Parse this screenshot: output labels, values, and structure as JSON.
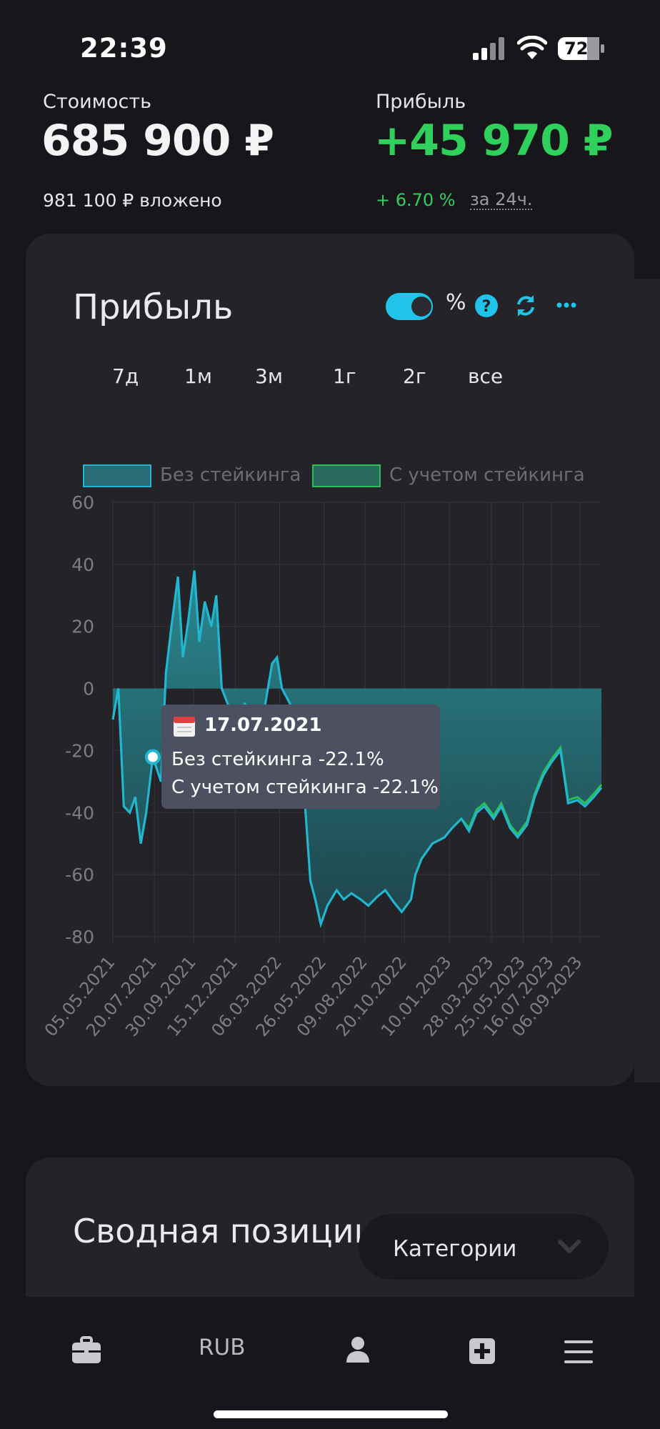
{
  "status_bar": {
    "time": "22:39",
    "battery": "72"
  },
  "header": {
    "value_label": "Стоимость",
    "value_amount": "685 900 ₽",
    "invested": "981 100 ₽ вложено",
    "profit_label": "Прибыль",
    "profit_amount": "+45 970 ₽",
    "profit_pct": "+ 6.70 %",
    "period_link": "за 24ч."
  },
  "colors": {
    "accent": "#20c3ea",
    "positive": "#2fd15c",
    "series_no_staking": "#21b6d6",
    "series_with_staking": "#2bbd56"
  },
  "chart_card": {
    "title": "Прибыль",
    "percent_label": "%",
    "toggle_on": true,
    "icons": [
      "help-icon",
      "refresh-icon",
      "more-icon"
    ],
    "ranges": [
      "7д",
      "1м",
      "3м",
      "1г",
      "2г",
      "все"
    ]
  },
  "tooltip": {
    "date": "17.07.2021",
    "line1": "Без стейкинга -22.1%",
    "line2": "С учетом стейкинга -22.1%"
  },
  "chart_data": {
    "type": "area",
    "legend_position": "top",
    "grid": true,
    "ylim": [
      -80,
      60
    ],
    "yticks": [
      60,
      40,
      20,
      0,
      -20,
      -40,
      -60,
      -80
    ],
    "xticks": [
      "05.05.2021",
      "20.07.2021",
      "30.09.2021",
      "15.12.2021",
      "06.03.2022",
      "26.05.2022",
      "09.08.2022",
      "20.10.2022",
      "10.01.2023",
      "28.03.2023",
      "25.05.2023",
      "16.07.2023",
      "06.09.2023"
    ],
    "x": [
      "05.05.2021",
      "15.05.2021",
      "25.05.2021",
      "05.06.2021",
      "15.06.2021",
      "25.06.2021",
      "05.07.2021",
      "17.07.2021",
      "01.08.2021",
      "10.08.2021",
      "20.08.2021",
      "01.09.2021",
      "10.09.2021",
      "20.09.2021",
      "01.10.2021",
      "10.10.2021",
      "20.10.2021",
      "01.11.2021",
      "10.11.2021",
      "20.11.2021",
      "01.12.2021",
      "20.12.2021",
      "01.01.2022",
      "20.01.2022",
      "01.02.2022",
      "20.02.2022",
      "01.03.2022",
      "10.03.2022",
      "25.03.2022",
      "01.04.2022",
      "15.04.2022",
      "01.05.2022",
      "10.05.2022",
      "20.05.2022",
      "01.06.2022",
      "18.06.2022",
      "01.07.2022",
      "15.07.2022",
      "01.08.2022",
      "15.08.2022",
      "01.09.2022",
      "15.09.2022",
      "01.10.2022",
      "15.10.2022",
      "01.11.2022",
      "09.11.2022",
      "20.11.2022",
      "10.12.2022",
      "01.01.2023",
      "15.01.2023",
      "01.02.2023",
      "15.02.2023",
      "01.03.2023",
      "15.03.2023",
      "01.04.2023",
      "15.04.2023",
      "01.05.2023",
      "15.05.2023",
      "01.06.2023",
      "15.06.2023",
      "01.07.2023",
      "15.07.2023",
      "01.08.2023",
      "15.08.2023",
      "01.09.2023",
      "15.09.2023",
      "01.10.2023",
      "15.10.2023"
    ],
    "series": [
      {
        "name": "Без стейкинга",
        "values": [
          -10,
          0,
          -38,
          -40,
          -35,
          -50,
          -40,
          -22.1,
          -30,
          5,
          20,
          36,
          10,
          22,
          38,
          15,
          28,
          20,
          30,
          0,
          -5,
          -10,
          -5,
          -8,
          -12,
          8,
          10,
          0,
          -5,
          -10,
          -22,
          -62,
          -68,
          -76,
          -70,
          -65,
          -68,
          -66,
          -68,
          -70,
          -67,
          -65,
          -69,
          -72,
          -68,
          -60,
          -55,
          -50,
          -48,
          -45,
          -42,
          -46,
          -40,
          -38,
          -42,
          -38,
          -45,
          -48,
          -44,
          -35,
          -28,
          -24,
          -20,
          -37,
          -36,
          -38,
          -35,
          -32
        ]
      },
      {
        "name": "С учетом стейкинга",
        "values": [
          -10,
          0,
          -38,
          -40,
          -35,
          -50,
          -40,
          -22.1,
          -30,
          5,
          20,
          36,
          10,
          22,
          38,
          15,
          28,
          20,
          30,
          0,
          -5,
          -10,
          -5,
          -8,
          -12,
          8,
          10,
          0,
          -5,
          -10,
          -22,
          -62,
          -68,
          -76,
          -70,
          -65,
          -68,
          -66,
          -68,
          -70,
          -67,
          -65,
          -69,
          -72,
          -68,
          -60,
          -55,
          -50,
          -48,
          -45,
          -42,
          -45,
          -39,
          -37,
          -41,
          -37,
          -44,
          -47,
          -43,
          -34,
          -27,
          -23,
          -19,
          -36,
          -35,
          -37,
          -34,
          -31
        ]
      }
    ]
  },
  "summary_card": {
    "title": "Сводная позиции",
    "category_select": "Категории"
  },
  "bottom_nav": {
    "items": [
      "portfolio-icon",
      "RUB",
      "profile-icon",
      "add-icon",
      "menu-icon"
    ],
    "rub_label": "RUB"
  }
}
